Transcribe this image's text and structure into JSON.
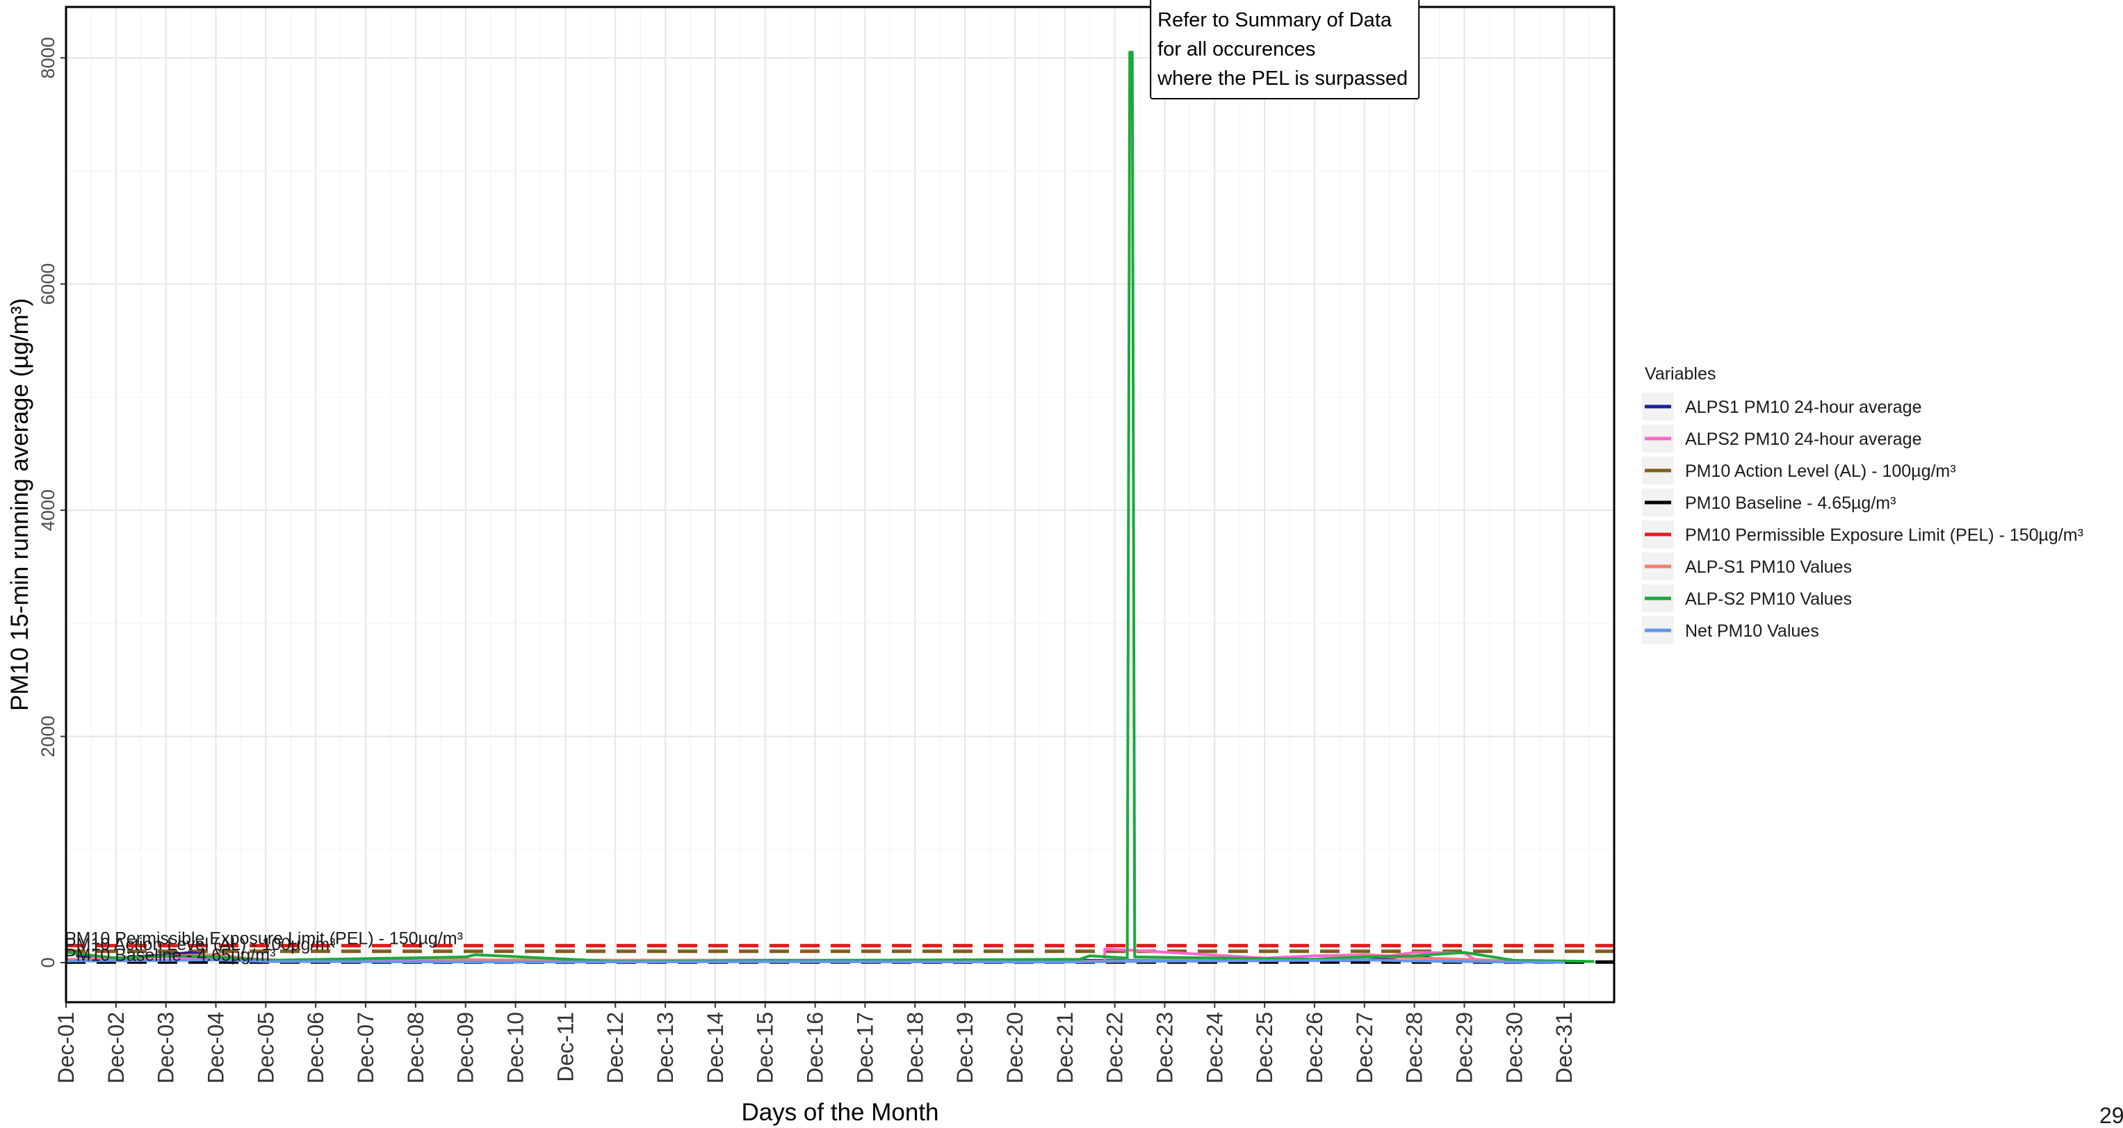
{
  "chart_data": {
    "type": "line",
    "xlabel": "Days of the Month",
    "ylabel": "PM10 15-min running average (µg/m³)",
    "xlim": [
      1,
      32
    ],
    "ylim": [
      -350,
      8450
    ],
    "x_ticks": [
      "Dec-01",
      "Dec-02",
      "Dec-03",
      "Dec-04",
      "Dec-05",
      "Dec-06",
      "Dec-07",
      "Dec-08",
      "Dec-09",
      "Dec-10",
      "Dec-11",
      "Dec-12",
      "Dec-13",
      "Dec-14",
      "Dec-15",
      "Dec-16",
      "Dec-17",
      "Dec-18",
      "Dec-19",
      "Dec-20",
      "Dec-21",
      "Dec-22",
      "Dec-23",
      "Dec-24",
      "Dec-25",
      "Dec-26",
      "Dec-27",
      "Dec-28",
      "Dec-29",
      "Dec-30",
      "Dec-31"
    ],
    "y_ticks": [
      0,
      2000,
      4000,
      6000,
      8000
    ],
    "grid": true,
    "legend_position": "right",
    "legend_title": "Variables",
    "reference_lines": [
      {
        "name": "PM10 Permissible Exposure Limit (PEL) - 150µg/m³",
        "value": 150,
        "color": "#e41a1c",
        "label": "PM10 Permissible Exposure Limit (PEL) - 150µg/m³"
      },
      {
        "name": "PM10 Action Level (AL) - 100µg/m³",
        "value": 100,
        "color": "#7f5f1c",
        "label": "PM10 Action Level (AL) - 100µg/m³"
      },
      {
        "name": "PM10 Baseline - 4.65µg/m³",
        "value": 4.65,
        "color": "#000000",
        "label": "PM10 Baseline - 4.65µg/m³"
      }
    ],
    "series": [
      {
        "name": "ALPS1 PM10 24-hour average",
        "color": "#1f1f9e",
        "x": [
          1.2,
          2,
          3,
          3.5,
          4,
          4.5,
          5,
          27,
          27.5,
          28,
          28.5,
          29,
          29.5
        ],
        "y": [
          60,
          40,
          70,
          90,
          50,
          30,
          20,
          20,
          40,
          60,
          30,
          20,
          20
        ]
      },
      {
        "name": "ALPS2 PM10 24-hour average",
        "color": "#ff66cc",
        "x": [
          1.5,
          3,
          4.5,
          6,
          8,
          9,
          10,
          15,
          16,
          21,
          21.8,
          21.8,
          22.3,
          25,
          26,
          27,
          27.5,
          28,
          29,
          29.2,
          30
        ],
        "y": [
          40,
          50,
          35,
          10,
          15,
          30,
          10,
          15,
          20,
          10,
          10,
          120,
          110,
          40,
          60,
          70,
          60,
          90,
          85,
          30,
          10
        ]
      },
      {
        "name": "ALP-S1 PM10 Values",
        "color": "#f08070",
        "x": [
          1,
          2,
          3,
          4,
          5,
          8,
          9,
          21,
          22,
          26,
          27,
          28,
          29,
          30,
          31
        ],
        "y": [
          30,
          25,
          60,
          70,
          20,
          40,
          25,
          10,
          15,
          30,
          60,
          40,
          30,
          10,
          5
        ]
      },
      {
        "name": "ALP-S2 PM10 Values",
        "color": "#1aaa3a",
        "x": [
          1,
          2,
          3,
          4,
          5,
          9,
          9.2,
          12,
          21.3,
          21.5,
          22.25,
          22.3,
          22.35,
          22.4,
          26,
          27,
          28,
          29,
          30,
          31.6
        ],
        "y": [
          90,
          40,
          60,
          50,
          20,
          50,
          70,
          10,
          30,
          60,
          40,
          8050,
          8050,
          50,
          30,
          50,
          60,
          90,
          20,
          10
        ]
      },
      {
        "name": "Net PM10 Values",
        "color": "#6495ed",
        "x": [
          1,
          3,
          4,
          5,
          10,
          15,
          21,
          22,
          26,
          27,
          28,
          29,
          30,
          31
        ],
        "y": [
          15,
          20,
          25,
          10,
          5,
          8,
          5,
          10,
          20,
          25,
          15,
          10,
          5,
          3
        ]
      }
    ],
    "annotation": {
      "lines": [
        "Refer to Summary of Data",
        "for all occurences",
        "where the PEL is surpassed"
      ],
      "x": 22.3,
      "y": 8450
    }
  },
  "legend": {
    "title": "Variables",
    "items": [
      {
        "label": "ALPS1 PM10 24-hour average",
        "color": "#1f1f9e"
      },
      {
        "label": "ALPS2 PM10 24-hour average",
        "color": "#ff66cc"
      },
      {
        "label": "PM10 Action Level (AL) - 100µg/m³",
        "color": "#7f5f1c"
      },
      {
        "label": "PM10 Baseline - 4.65µg/m³",
        "color": "#000000"
      },
      {
        "label": "PM10 Permissible Exposure Limit (PEL) - 150µg/m³",
        "color": "#e41a1c"
      },
      {
        "label": "ALP-S1 PM10 Values",
        "color": "#f08070"
      },
      {
        "label": "ALP-S2 PM10 Values",
        "color": "#1aaa3a"
      },
      {
        "label": "Net PM10 Values",
        "color": "#6495ed"
      }
    ]
  },
  "page_number": "29"
}
